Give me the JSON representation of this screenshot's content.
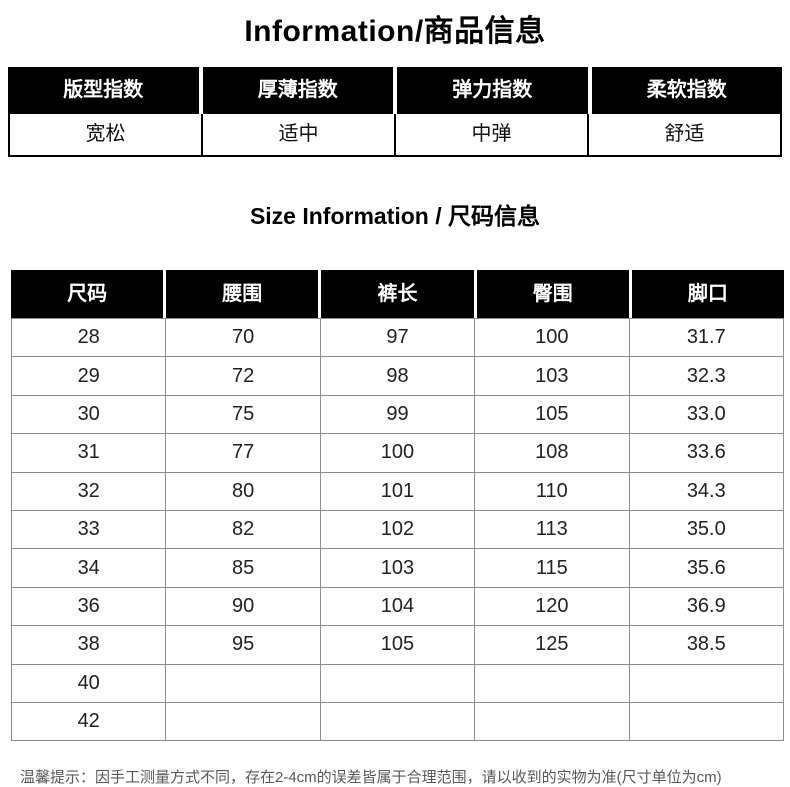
{
  "header": {
    "title": "Information/商品信息"
  },
  "info_table": {
    "columns": [
      {
        "label": "版型指数",
        "value": "宽松"
      },
      {
        "label": "厚薄指数",
        "value": "适中"
      },
      {
        "label": "弹力指数",
        "value": "中弹"
      },
      {
        "label": "柔软指数",
        "value": "舒适"
      }
    ]
  },
  "size_section": {
    "title": "Size Information / 尺码信息"
  },
  "size_table": {
    "headers": [
      "尺码",
      "腰围",
      "裤长",
      "臀围",
      "脚口"
    ],
    "rows": [
      [
        "28",
        "70",
        "97",
        "100",
        "31.7"
      ],
      [
        "29",
        "72",
        "98",
        "103",
        "32.3"
      ],
      [
        "30",
        "75",
        "99",
        "105",
        "33.0"
      ],
      [
        "31",
        "77",
        "100",
        "108",
        "33.6"
      ],
      [
        "32",
        "80",
        "101",
        "110",
        "34.3"
      ],
      [
        "33",
        "82",
        "102",
        "113",
        "35.0"
      ],
      [
        "34",
        "85",
        "103",
        "115",
        "35.6"
      ],
      [
        "36",
        "90",
        "104",
        "120",
        "36.9"
      ],
      [
        "38",
        "95",
        "105",
        "125",
        "38.5"
      ],
      [
        "40",
        "",
        "",
        "",
        ""
      ],
      [
        "42",
        "",
        "",
        "",
        ""
      ]
    ]
  },
  "footer": {
    "note": "温馨提示：因手工测量方式不同，存在2-4cm的误差皆属于合理范围，请以收到的实物为准(尺寸单位为cm)"
  },
  "colors": {
    "table_header_bg": "#000000",
    "table_header_text": "#ffffff",
    "body_text": "#222222",
    "grid_line": "#8c8c8c",
    "note_text": "#595959",
    "background": "#ffffff"
  }
}
